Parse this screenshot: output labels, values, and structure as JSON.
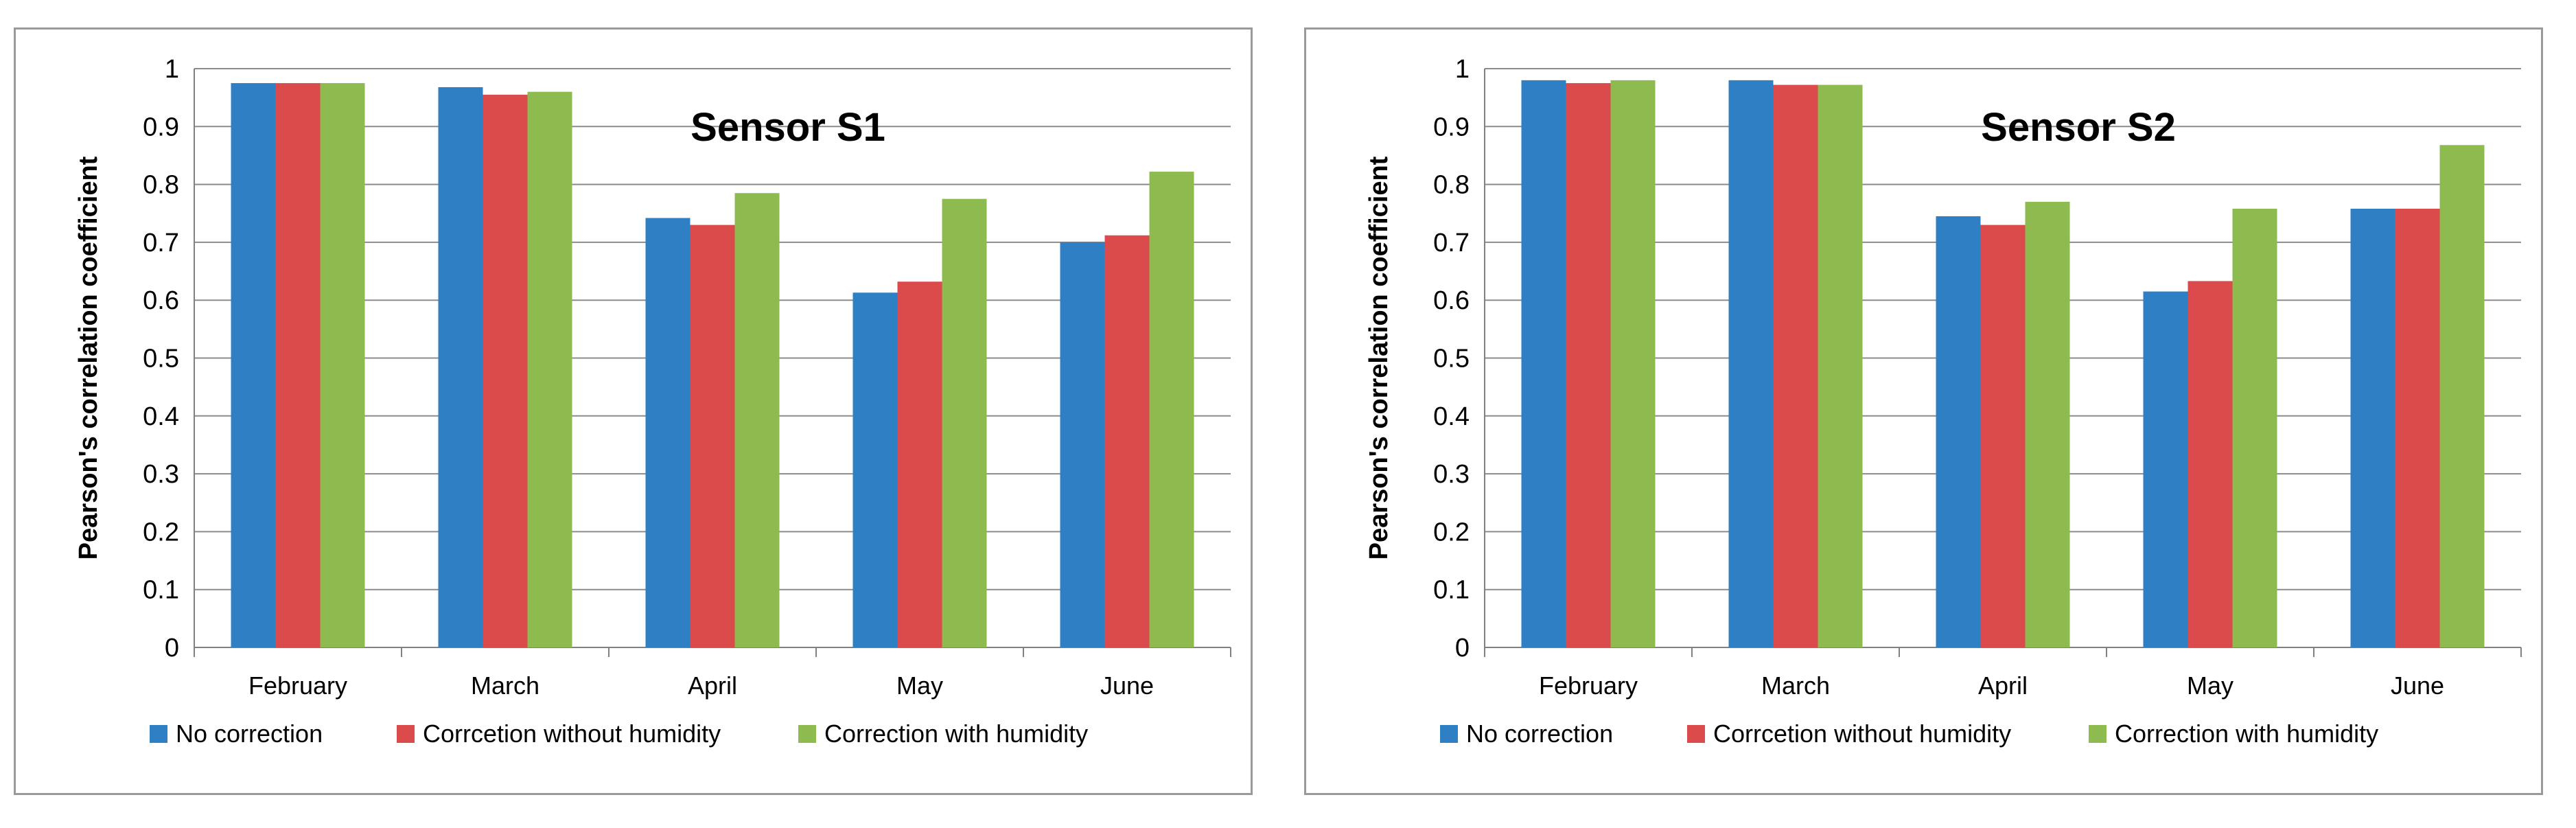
{
  "legend": {
    "no_correction": "No correction",
    "without_humidity": "Corrcetion without humidity",
    "with_humidity": "Correction with humidity"
  },
  "colors": {
    "no_correction": "#2E7FC3",
    "without_humidity": "#DC4B4B",
    "with_humidity": "#8DBB4F"
  },
  "chart_data": [
    {
      "type": "bar",
      "title": "Sensor S1",
      "xlabel": "",
      "ylabel": "Pearson's correlation coefficient",
      "ylim": [
        0,
        1
      ],
      "yticks": [
        "0",
        "0.1",
        "0.2",
        "0.3",
        "0.4",
        "0.5",
        "0.6",
        "0.7",
        "0.8",
        "0.9",
        "1"
      ],
      "categories": [
        "February",
        "March",
        "April",
        "May",
        "June"
      ],
      "series": [
        {
          "name": "No correction",
          "values": [
            0.975,
            0.968,
            0.742,
            0.613,
            0.7
          ]
        },
        {
          "name": "Corrcetion without humidity",
          "values": [
            0.975,
            0.955,
            0.73,
            0.632,
            0.712
          ]
        },
        {
          "name": "Correction with humidity",
          "values": [
            0.975,
            0.96,
            0.785,
            0.775,
            0.822
          ]
        }
      ],
      "grid": true,
      "legend_position": "bottom"
    },
    {
      "type": "bar",
      "title": "Sensor S2",
      "xlabel": "",
      "ylabel": "Pearson's correlation coefficient",
      "ylim": [
        0,
        1
      ],
      "yticks": [
        "0",
        "0.1",
        "0.2",
        "0.3",
        "0.4",
        "0.5",
        "0.6",
        "0.7",
        "0.8",
        "0.9",
        "1"
      ],
      "categories": [
        "February",
        "March",
        "April",
        "May",
        "June"
      ],
      "series": [
        {
          "name": "No correction",
          "values": [
            0.98,
            0.98,
            0.745,
            0.615,
            0.758
          ]
        },
        {
          "name": "Corrcetion without humidity",
          "values": [
            0.975,
            0.972,
            0.73,
            0.633,
            0.758
          ]
        },
        {
          "name": "Correction with humidity",
          "values": [
            0.98,
            0.972,
            0.77,
            0.758,
            0.868
          ]
        }
      ],
      "grid": true,
      "legend_position": "bottom"
    }
  ]
}
